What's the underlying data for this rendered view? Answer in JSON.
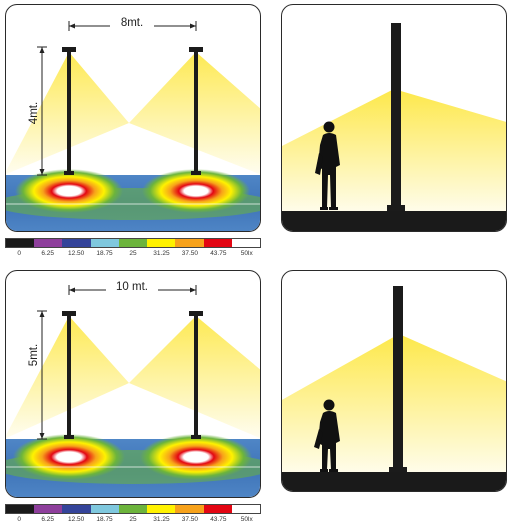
{
  "scenes": [
    {
      "spacing_label": "8mt.",
      "height_label": "4mt."
    },
    {
      "spacing_label": "10 mt.",
      "height_label": "5mt."
    }
  ],
  "legend": {
    "colors": [
      "#1a1a1a",
      "#8e3f9c",
      "#34449a",
      "#7fc8de",
      "#6cb43c",
      "#fff200",
      "#f7a21b",
      "#e30613",
      "#ffffff"
    ],
    "labels": [
      "0",
      "6.25",
      "12.50",
      "18.75",
      "25",
      "31.25",
      "37.50",
      "43.75",
      "50lx"
    ]
  },
  "colors": {
    "light": "#fde84a",
    "pole": "#1b1b1b",
    "ground": "#1a1a1a"
  }
}
